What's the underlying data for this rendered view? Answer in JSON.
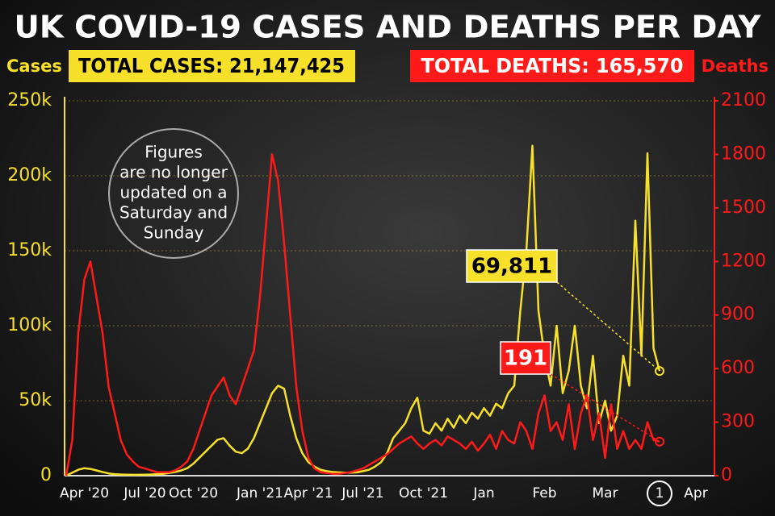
{
  "chart_data": {
    "type": "line",
    "title": "UK COVID-19 CASES AND DEATHS PER DAY",
    "total_cases": "TOTAL CASES: 21,147,425",
    "total_deaths": "TOTAL DEATHS: 165,570",
    "note": [
      "Figures",
      "are no longer",
      "updated on a",
      "Saturday and",
      "Sunday"
    ],
    "categories": [
      null,
      null,
      null,
      "Apr '20",
      null,
      null,
      null,
      null,
      null,
      null,
      null,
      null,
      null,
      "Jul '20",
      null,
      null,
      null,
      null,
      null,
      null,
      null,
      "Oct '20",
      null,
      null,
      null,
      null,
      null,
      null,
      null,
      null,
      null,
      null,
      "Jan '21",
      null,
      null,
      null,
      null,
      null,
      null,
      null,
      "Apr '21",
      null,
      null,
      null,
      null,
      null,
      null,
      null,
      null,
      "Jul '21",
      null,
      null,
      null,
      null,
      null,
      null,
      null,
      null,
      null,
      "Oct '21",
      null,
      null,
      null,
      null,
      null,
      null,
      null,
      null,
      null,
      "Jan",
      null,
      null,
      null,
      null,
      null,
      null,
      null,
      null,
      null,
      "Feb",
      null,
      null,
      null,
      null,
      null,
      null,
      null,
      null,
      null,
      "Mar",
      null,
      null,
      null,
      null,
      null,
      null,
      null,
      null,
      "1",
      null,
      null,
      null,
      null,
      null,
      "Apr"
    ],
    "series": [
      {
        "name": "Cases",
        "color": "#f7e02a",
        "values": [
          0,
          2000,
          4000,
          5000,
          4500,
          3500,
          2500,
          1500,
          1000,
          800,
          700,
          600,
          600,
          700,
          800,
          1000,
          1200,
          1800,
          2500,
          3500,
          5000,
          8000,
          12000,
          16000,
          20000,
          24000,
          25000,
          20000,
          16000,
          15000,
          18000,
          25000,
          35000,
          45000,
          55000,
          60000,
          58000,
          40000,
          25000,
          15000,
          9000,
          6000,
          4000,
          3000,
          2500,
          2200,
          2000,
          2000,
          2200,
          3000,
          4000,
          6000,
          9000,
          15000,
          25000,
          30000,
          35000,
          45000,
          52000,
          30000,
          28000,
          35000,
          30000,
          38000,
          32000,
          40000,
          35000,
          42000,
          38000,
          45000,
          40000,
          48000,
          45000,
          55000,
          60000,
          110000,
          150000,
          220000,
          110000,
          80000,
          60000,
          100000,
          55000,
          70000,
          100000,
          60000,
          45000,
          80000,
          35000,
          50000,
          30000,
          40000,
          80000,
          60000,
          170000,
          80000,
          215000,
          85000,
          69811,
          null,
          null,
          null,
          null,
          null,
          null
        ],
        "value_labels": [
          null,
          null,
          null,
          null,
          null,
          null,
          null,
          null,
          null,
          null,
          null,
          null,
          null,
          null,
          null,
          null,
          null,
          null,
          null,
          null,
          null,
          null,
          null,
          null,
          null,
          null,
          null,
          null,
          null,
          null,
          null,
          null,
          null,
          null,
          null,
          null,
          null,
          null,
          null,
          null,
          null,
          null,
          null,
          null,
          null,
          null,
          null,
          null,
          null,
          null,
          null,
          null,
          null,
          null,
          null,
          null,
          null,
          null,
          null,
          null,
          null,
          null,
          null,
          null,
          null,
          null,
          null,
          null,
          null,
          null,
          null,
          null,
          null,
          null,
          null,
          null,
          null,
          null,
          null,
          null,
          null,
          null,
          null,
          null,
          null,
          null,
          null,
          null,
          null,
          null,
          null,
          null,
          null,
          null,
          null,
          null,
          null,
          null,
          "69,811",
          null,
          null,
          null,
          null,
          null,
          null
        ]
      },
      {
        "name": "Deaths",
        "color": "#ff1a1a",
        "axis": "y2",
        "values": [
          0,
          200,
          800,
          1100,
          1200,
          1000,
          800,
          500,
          350,
          200,
          120,
          80,
          50,
          40,
          30,
          20,
          20,
          20,
          30,
          50,
          80,
          150,
          250,
          350,
          450,
          500,
          550,
          450,
          400,
          500,
          600,
          700,
          1000,
          1400,
          1800,
          1650,
          1300,
          900,
          500,
          250,
          100,
          40,
          20,
          15,
          10,
          10,
          15,
          20,
          30,
          40,
          60,
          80,
          100,
          120,
          150,
          180,
          200,
          220,
          180,
          150,
          180,
          200,
          170,
          220,
          200,
          180,
          150,
          190,
          140,
          180,
          230,
          150,
          250,
          200,
          180,
          300,
          250,
          150,
          350,
          450,
          250,
          300,
          200,
          400,
          150,
          350,
          450,
          200,
          350,
          100,
          400,
          150,
          250,
          150,
          200,
          150,
          300,
          200,
          191,
          null,
          null,
          null,
          null,
          null,
          null
        ]
      }
    ],
    "ylim": [
      0,
      250000
    ],
    "yticks": [
      0,
      {
        "value": 50000,
        "label": "50k"
      },
      {
        "value": 100000,
        "label": "100k"
      },
      {
        "value": 150000,
        "label": "150k"
      },
      {
        "value": 200000,
        "label": "200k"
      },
      {
        "value": 250000,
        "label": "250k"
      }
    ],
    "y2lim": [
      0,
      2100
    ],
    "y2ticks": [
      0,
      300,
      600,
      900,
      1200,
      1500,
      1800,
      2100
    ],
    "grid": true
  }
}
